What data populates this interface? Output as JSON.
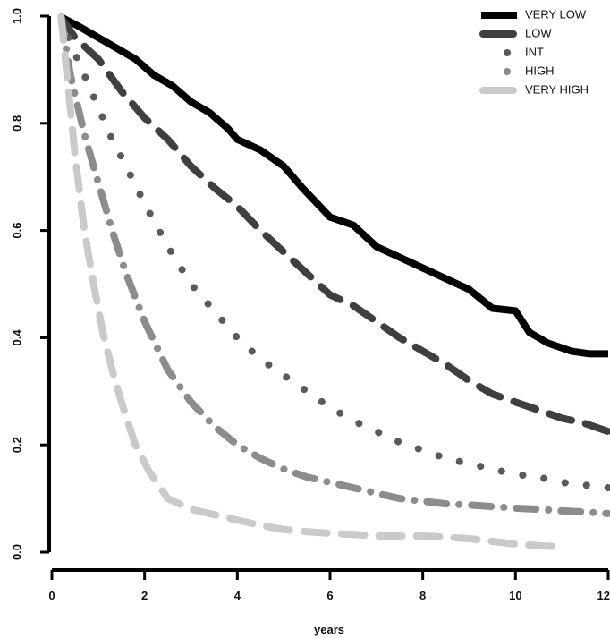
{
  "chart_data": {
    "type": "line",
    "title": "",
    "xlabel": "years",
    "ylabel": "",
    "xlim": [
      0,
      12
    ],
    "ylim": [
      0,
      1
    ],
    "x_ticks": [
      0,
      2,
      4,
      6,
      8,
      10,
      12
    ],
    "x_tick_labels": [
      "0",
      "2",
      "4",
      "6",
      "8",
      "10",
      "12"
    ],
    "y_ticks": [
      0,
      0.2,
      0.4,
      0.6,
      0.8,
      1.0
    ],
    "y_tick_labels": [
      "0.0",
      "0.2",
      "0.4",
      "0.6",
      "0.8",
      "1.0"
    ],
    "legend_position": "top-right",
    "grid": false,
    "series": [
      {
        "name": "VERY LOW",
        "color": "#000000",
        "style": "solid",
        "width": 8,
        "x": [
          0.2,
          0.6,
          1.0,
          1.4,
          1.8,
          2.2,
          2.6,
          3.0,
          3.4,
          3.8,
          4.0,
          4.5,
          5.0,
          5.4,
          6.0,
          6.5,
          7.0,
          7.5,
          8.0,
          8.5,
          9.0,
          9.5,
          10.0,
          10.3,
          10.7,
          11.2,
          11.6,
          12.0
        ],
        "y": [
          0.998,
          0.98,
          0.96,
          0.94,
          0.92,
          0.89,
          0.87,
          0.84,
          0.82,
          0.79,
          0.77,
          0.75,
          0.72,
          0.68,
          0.625,
          0.61,
          0.57,
          0.55,
          0.53,
          0.51,
          0.49,
          0.455,
          0.45,
          0.41,
          0.39,
          0.375,
          0.37,
          0.37
        ]
      },
      {
        "name": "LOW",
        "color": "#3f3f3f",
        "style": "longdash",
        "width": 8,
        "x": [
          0.2,
          0.5,
          1.0,
          1.5,
          2.0,
          2.5,
          3.0,
          3.5,
          4.0,
          4.5,
          5.0,
          5.5,
          6.0,
          6.5,
          7.0,
          7.5,
          8.0,
          8.5,
          9.0,
          9.5,
          10.0,
          10.5,
          11.0,
          11.5,
          12.0
        ],
        "y": [
          0.998,
          0.96,
          0.92,
          0.86,
          0.81,
          0.77,
          0.72,
          0.68,
          0.645,
          0.6,
          0.56,
          0.52,
          0.48,
          0.46,
          0.43,
          0.4,
          0.375,
          0.35,
          0.32,
          0.295,
          0.28,
          0.265,
          0.25,
          0.24,
          0.225
        ]
      },
      {
        "name": "INT",
        "color": "#5a5a5a",
        "style": "dotted",
        "width": 8,
        "x": [
          0.2,
          0.4,
          0.7,
          1.0,
          1.3,
          1.6,
          2.0,
          2.5,
          3.0,
          3.5,
          4.0,
          4.5,
          5.0,
          5.5,
          6.0,
          6.5,
          7.0,
          7.5,
          8.0,
          8.5,
          9.0,
          9.5,
          10.0,
          10.5,
          11.0,
          11.5,
          12.0
        ],
        "y": [
          0.998,
          0.95,
          0.89,
          0.83,
          0.77,
          0.72,
          0.65,
          0.57,
          0.5,
          0.45,
          0.4,
          0.36,
          0.33,
          0.3,
          0.27,
          0.245,
          0.225,
          0.205,
          0.19,
          0.175,
          0.165,
          0.155,
          0.145,
          0.14,
          0.13,
          0.125,
          0.12
        ]
      },
      {
        "name": "HIGH",
        "color": "#8c8c8c",
        "style": "dashdot",
        "width": 8,
        "x": [
          0.2,
          0.4,
          0.7,
          1.0,
          1.3,
          1.6,
          2.0,
          2.5,
          3.0,
          3.5,
          4.0,
          4.5,
          5.0,
          5.5,
          6.0,
          6.5,
          7.0,
          7.5,
          8.0,
          8.5,
          9.0,
          9.5,
          10.0,
          10.5,
          11.0,
          11.5,
          12.0
        ],
        "y": [
          0.998,
          0.89,
          0.78,
          0.69,
          0.6,
          0.52,
          0.43,
          0.34,
          0.28,
          0.235,
          0.2,
          0.175,
          0.155,
          0.14,
          0.13,
          0.12,
          0.11,
          0.1,
          0.095,
          0.09,
          0.088,
          0.085,
          0.082,
          0.08,
          0.077,
          0.075,
          0.072
        ]
      },
      {
        "name": "VERY HIGH",
        "color": "#cacaca",
        "style": "longdash",
        "width": 8,
        "x": [
          0.2,
          0.35,
          0.5,
          0.7,
          0.9,
          1.1,
          1.3,
          1.5,
          1.8,
          2.1,
          2.5,
          3.0,
          3.5,
          4.0,
          4.5,
          5.0,
          5.5,
          6.0,
          6.5,
          7.0,
          7.5,
          8.0,
          8.5,
          9.0,
          9.5,
          10.0,
          10.5,
          11.0
        ],
        "y": [
          0.998,
          0.87,
          0.74,
          0.6,
          0.5,
          0.41,
          0.34,
          0.28,
          0.2,
          0.15,
          0.1,
          0.08,
          0.07,
          0.06,
          0.05,
          0.042,
          0.038,
          0.035,
          0.033,
          0.03,
          0.03,
          0.03,
          0.028,
          0.025,
          0.02,
          0.015,
          0.012,
          0.01
        ]
      }
    ]
  }
}
